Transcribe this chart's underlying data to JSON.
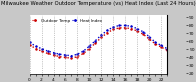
{
  "title": "Milwaukee Weather Outdoor Temperature (vs) Heat Index (Last 24 Hours)",
  "title_fontsize": 3.8,
  "bg_color": "#c8c8c8",
  "plot_bg_color": "#ffffff",
  "line1_color": "#cc0000",
  "line2_color": "#0000cc",
  "line3_color": "#000000",
  "ylim": [
    18,
    92
  ],
  "xlim": [
    0,
    23
  ],
  "hours": [
    0,
    1,
    2,
    3,
    4,
    5,
    6,
    7,
    8,
    9,
    10,
    11,
    12,
    13,
    14,
    15,
    16,
    17,
    18,
    19,
    20,
    21,
    22,
    23
  ],
  "temp": [
    55,
    50,
    47,
    44,
    42,
    40,
    39,
    38,
    40,
    44,
    50,
    57,
    64,
    70,
    74,
    76,
    76,
    75,
    72,
    68,
    62,
    56,
    52,
    48
  ],
  "heat_index": [
    58,
    53,
    50,
    47,
    45,
    43,
    42,
    41,
    43,
    47,
    53,
    60,
    67,
    73,
    77,
    79,
    79,
    78,
    75,
    71,
    65,
    58,
    54,
    50
  ],
  "yticks": [
    20,
    30,
    40,
    50,
    60,
    70,
    80,
    90
  ],
  "grid_color": "#888888",
  "tick_label_fontsize": 3.2,
  "legend_fontsize": 3.0,
  "vgrid_positions": [
    0,
    2,
    4,
    6,
    8,
    10,
    12,
    14,
    16,
    18,
    20,
    22
  ]
}
